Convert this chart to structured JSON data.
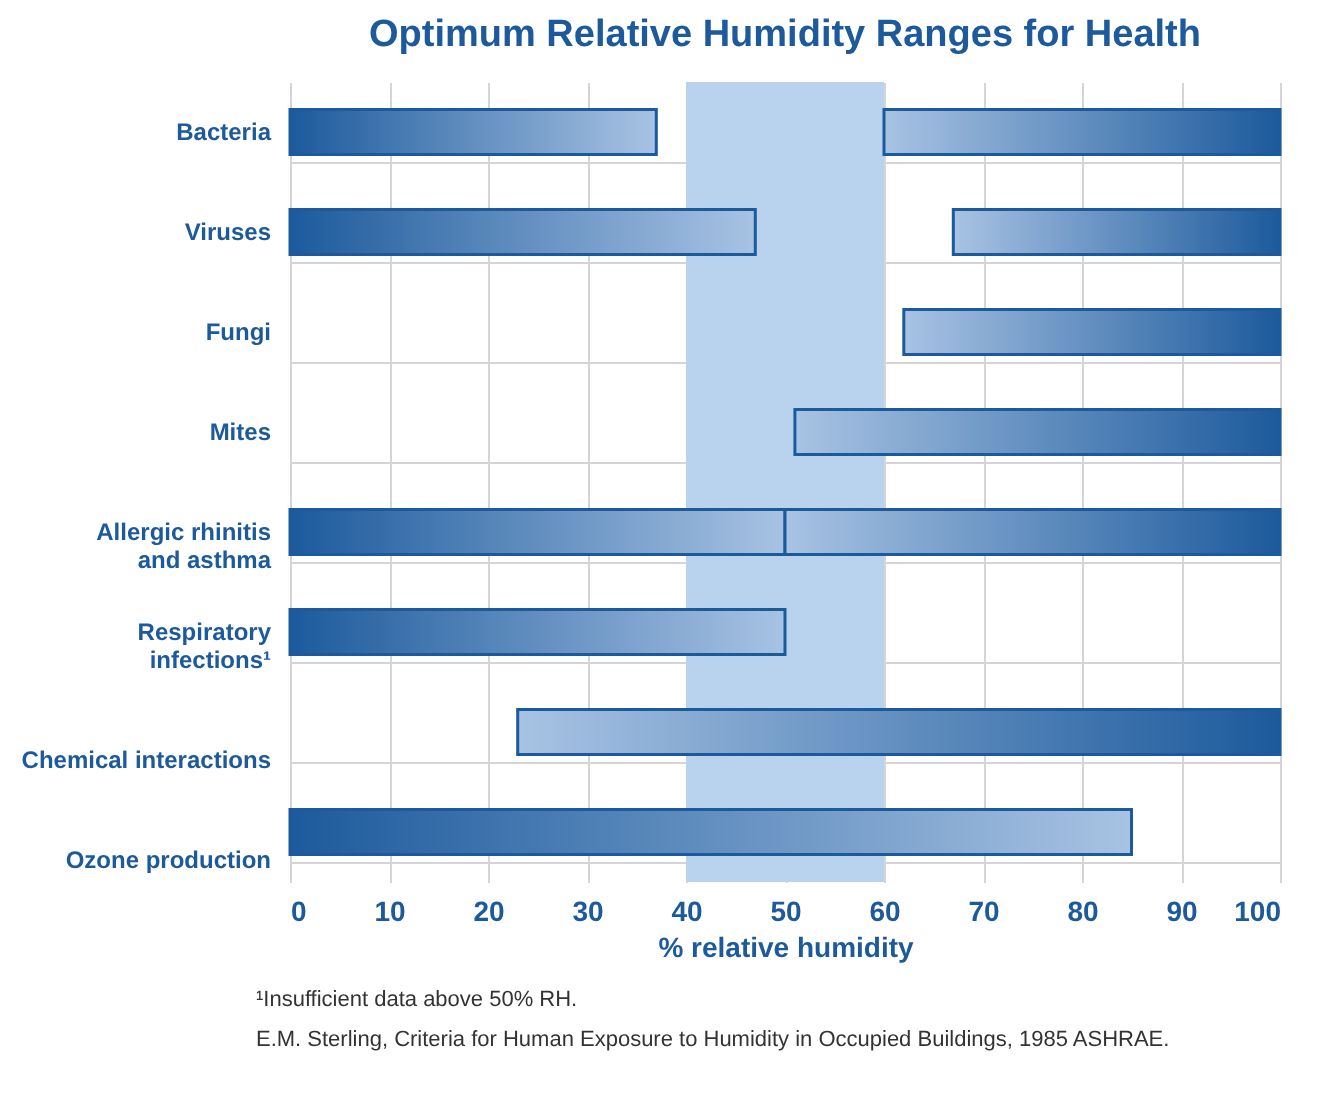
{
  "chart_data": {
    "type": "bar",
    "orientation": "horizontal",
    "title": "Optimum Relative Humidity Ranges for Health",
    "xlabel": "% relative humidity",
    "categories": [
      "Bacteria",
      "Viruses",
      "Fungi",
      "Mites",
      "Allergic rhinitis and asthma",
      "Respiratory infections¹",
      "Chemical interactions",
      "Ozone production"
    ],
    "series": [
      {
        "color": "#1c5a9c",
        "base": [
          0,
          0,
          null,
          null,
          0,
          0,
          null,
          0
        ],
        "values": [
          37,
          47,
          null,
          null,
          50,
          50,
          null,
          85
        ]
      },
      {
        "color": "#1c5a9c",
        "base": [
          60,
          67,
          62,
          51,
          50,
          null,
          23,
          null
        ],
        "values": [
          40,
          33,
          38,
          49,
          50,
          null,
          77,
          null
        ]
      }
    ],
    "xlim": [
      0,
      100
    ],
    "xticks": [
      0,
      10,
      20,
      30,
      40,
      50,
      60,
      70,
      80,
      90,
      100
    ],
    "grid": true,
    "bands": [
      {
        "axis": "x",
        "from": 40,
        "to": 60,
        "color": "#b9d3ee"
      }
    ],
    "annotations": [
      "¹Insufficient data above 50% RH.",
      "E.M. Sterling, Criteria for Human Exposure to Humidity in Occupied Buildings, 1985 ASHRAE."
    ]
  }
}
